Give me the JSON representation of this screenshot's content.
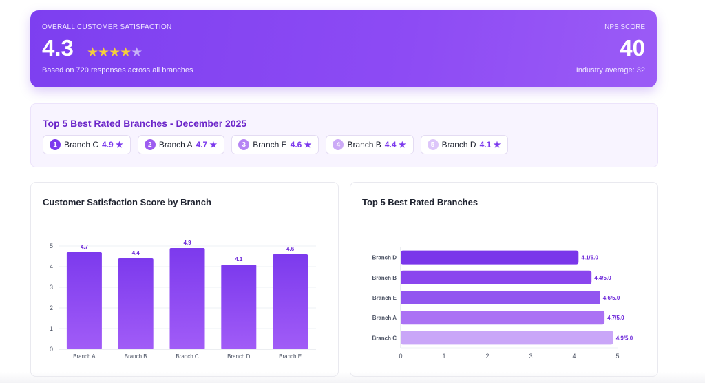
{
  "hero": {
    "kicker": "OVERALL CUSTOMER SATISFACTION",
    "score": "4.3",
    "stars_filled": 4,
    "stars_total": 5,
    "subtitle": "Based on 720 responses across all branches",
    "nps_label": "NPS SCORE",
    "nps_value": "40",
    "nps_sub": "Industry average: 32"
  },
  "top5": {
    "title": "Top 5 Best Rated Branches - December 2025",
    "items": [
      {
        "rank": "1",
        "name": "Branch C",
        "rating": "4.9 ★"
      },
      {
        "rank": "2",
        "name": "Branch A",
        "rating": "4.7 ★"
      },
      {
        "rank": "3",
        "name": "Branch E",
        "rating": "4.6 ★"
      },
      {
        "rank": "4",
        "name": "Branch B",
        "rating": "4.4 ★"
      },
      {
        "rank": "5",
        "name": "Branch D",
        "rating": "4.1 ★"
      }
    ],
    "rank_colors": [
      "#7c3aed",
      "#9d5cf0",
      "#b684f4",
      "#ccaaf7",
      "#ddc6fa"
    ]
  },
  "chart_data": [
    {
      "type": "bar",
      "title": "Customer Satisfaction Score by Branch",
      "categories": [
        "Branch A",
        "Branch B",
        "Branch C",
        "Branch D",
        "Branch E"
      ],
      "values": [
        4.7,
        4.4,
        4.9,
        4.1,
        4.6
      ],
      "ylim": [
        0,
        5
      ],
      "yticks": [
        0,
        1,
        2,
        3,
        4,
        5
      ],
      "grid": true,
      "color": "#8b4cf2"
    },
    {
      "type": "bar",
      "orientation": "horizontal",
      "title": "Top 5 Best Rated Branches",
      "categories": [
        "Branch D",
        "Branch B",
        "Branch E",
        "Branch A",
        "Branch C"
      ],
      "values": [
        4.1,
        4.4,
        4.6,
        4.7,
        4.9
      ],
      "value_suffix": "/5.0",
      "xlim": [
        0,
        5
      ],
      "xticks": [
        0,
        1,
        2,
        3,
        4,
        5
      ],
      "colors": [
        "#7a36ea",
        "#8a45ee",
        "#9256f0",
        "#ab72f4",
        "#c9a6f8"
      ]
    }
  ]
}
